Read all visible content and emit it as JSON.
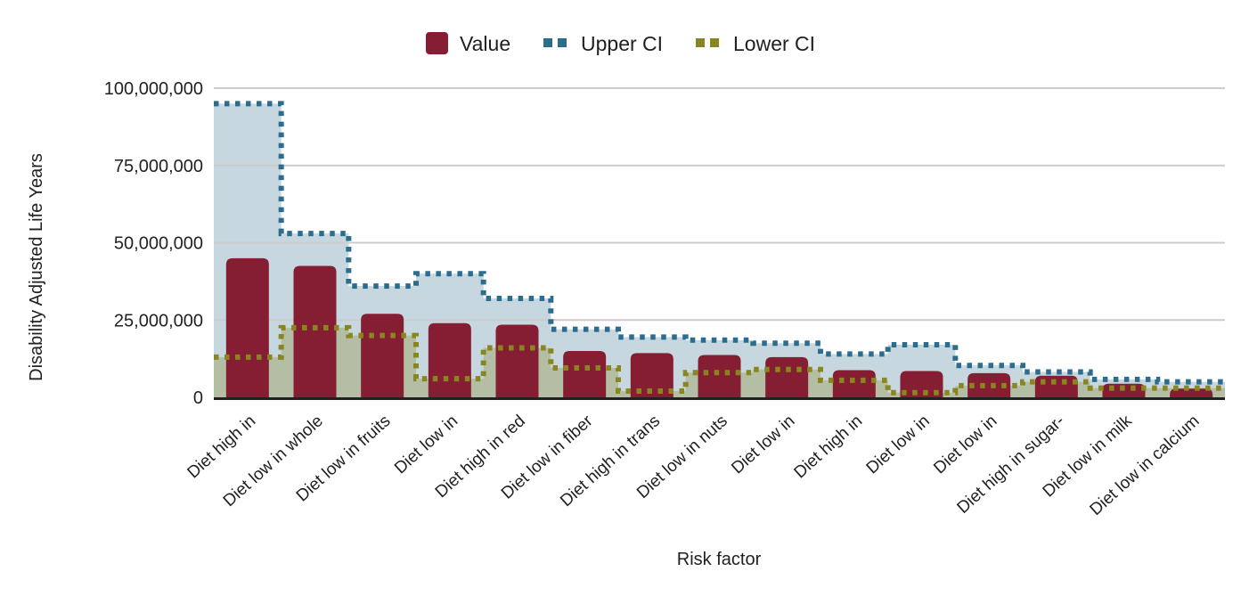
{
  "chart_data": {
    "type": "bar",
    "title": "",
    "xlabel": "Risk factor",
    "ylabel": "Disability Adjusted Life Years",
    "ylim": [
      0,
      100000000
    ],
    "grid": "horizontal",
    "yticks": [
      {
        "value": 0,
        "label": "0"
      },
      {
        "value": 25000000,
        "label": "25,000,000"
      },
      {
        "value": 50000000,
        "label": "50,000,000"
      },
      {
        "value": 75000000,
        "label": "75,000,000"
      },
      {
        "value": 100000000,
        "label": "100,000,000"
      }
    ],
    "categories": [
      "Diet high in",
      "Diet low in whole",
      "Diet low in fruits",
      "Diet low in",
      "Diet high in red",
      "Diet low in fiber",
      "Diet high in trans",
      "Diet low in nuts",
      "Diet low in",
      "Diet high in",
      "Diet low in",
      "Diet low in",
      "Diet high in sugar-",
      "Diet low in milk",
      "Diet low in calcium"
    ],
    "series": [
      {
        "name": "Value",
        "type": "bar",
        "color": "#851E32",
        "values": [
          45000000,
          42500000,
          27000000,
          24000000,
          23500000,
          15000000,
          14300000,
          13700000,
          13000000,
          8800000,
          8500000,
          7800000,
          7000000,
          4400000,
          2800000
        ]
      },
      {
        "name": "Upper CI",
        "type": "stepped-dotted-area",
        "color": "#2C6D8E",
        "fill_opacity": 0.27,
        "values": [
          95000000,
          53000000,
          36000000,
          40000000,
          32000000,
          22000000,
          19500000,
          18500000,
          17500000,
          14000000,
          17000000,
          10300000,
          8200000,
          5800000,
          5000000
        ]
      },
      {
        "name": "Lower CI",
        "type": "stepped-dotted-area",
        "color": "#8A861F",
        "fill_opacity": 0.3,
        "values": [
          13000000,
          22500000,
          20000000,
          6000000,
          16000000,
          9500000,
          2000000,
          8000000,
          9000000,
          5500000,
          1500000,
          3800000,
          5000000,
          3000000,
          3000000
        ]
      }
    ],
    "legend": {
      "position": "top",
      "entries": [
        {
          "label": "Value",
          "marker": "square",
          "color": "#851E32"
        },
        {
          "label": "Upper CI",
          "marker": "dashed",
          "color": "#2C6D8E"
        },
        {
          "label": "Lower CI",
          "marker": "dashed",
          "color": "#8A861F"
        }
      ]
    },
    "colors": {
      "gridline": "#CCCCCC",
      "axis_line": "#212121",
      "text": "#212121"
    }
  }
}
